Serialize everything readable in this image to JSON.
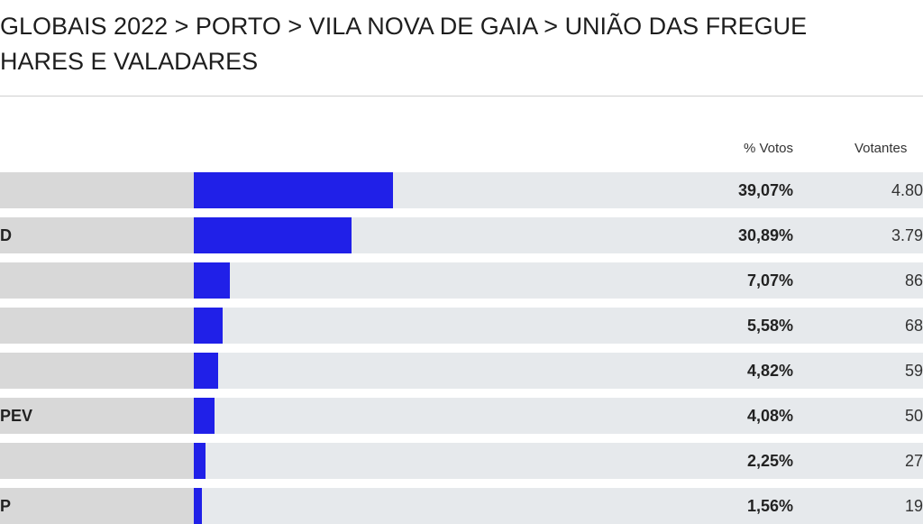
{
  "header": {
    "title_lines": [
      "GLOBAIS 2022 > PORTO > VILA NOVA DE GAIA > UNIÃO DAS FREGUE",
      "HARES E VALADARES"
    ]
  },
  "table": {
    "columns": [
      "% Votos",
      "Votantes"
    ],
    "rows": [
      {
        "pct": 39.07,
        "pct_label": "39,07%",
        "votes": "4.80"
      },
      {
        "party": "D",
        "pct": 30.89,
        "pct_label": "30,89%",
        "votes": "3.79"
      },
      {
        "pct": 7.07,
        "pct_label": "7,07%",
        "votes": "86"
      },
      {
        "pct": 5.58,
        "pct_label": "5,58%",
        "votes": "68"
      },
      {
        "pct": 4.82,
        "pct_label": "4,82%",
        "votes": "59"
      },
      {
        "party": "PEV",
        "pct": 4.08,
        "pct_label": "4,08%",
        "votes": "50"
      },
      {
        "pct": 2.25,
        "pct_label": "2,25%",
        "votes": "27"
      },
      {
        "party": "P",
        "pct": 1.56,
        "pct_label": "1,56%",
        "votes": "19"
      }
    ]
  }
}
